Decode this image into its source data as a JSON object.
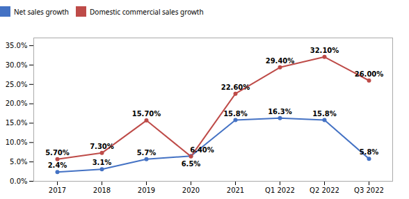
{
  "chart_data": {
    "type": "line",
    "categories": [
      "2017",
      "2018",
      "2019",
      "2020",
      "2021",
      "Q1 2022",
      "Q2 2022",
      "Q3 2022"
    ],
    "series": [
      {
        "name": "Net sales growth",
        "color": "#4472C4",
        "marker": "circle",
        "values": [
          2.4,
          3.1,
          5.7,
          6.5,
          15.8,
          16.3,
          15.8,
          5.8
        ],
        "value_labels": [
          "2.4%",
          "3.1%",
          "5.7%",
          "6.5%",
          "15.8%",
          "16.3%",
          "15.8%",
          "5.8%"
        ]
      },
      {
        "name": "Domestic commercial sales growth",
        "color": "#BE4B48",
        "marker": "circle",
        "values": [
          5.7,
          7.3,
          15.7,
          6.4,
          22.6,
          29.4,
          32.1,
          26.0
        ],
        "value_labels": [
          "5.70%",
          "7.30%",
          "15.70%",
          "6.40%",
          "22.60%",
          "29.40%",
          "32.10%",
          "26.00%"
        ]
      }
    ],
    "ylim": [
      0,
      37
    ],
    "yticks": [
      {
        "value": 0,
        "label": "0.0%"
      },
      {
        "value": 5,
        "label": "5.0%"
      },
      {
        "value": 10,
        "label": "10.0%"
      },
      {
        "value": 15,
        "label": "15.0%"
      },
      {
        "value": 20,
        "label": "20.0%"
      },
      {
        "value": 25,
        "label": "25.0%"
      },
      {
        "value": 30,
        "label": "30.0%"
      },
      {
        "value": 35,
        "label": "35.0%"
      }
    ],
    "grid": false,
    "legend": "top",
    "data_labels": true
  }
}
